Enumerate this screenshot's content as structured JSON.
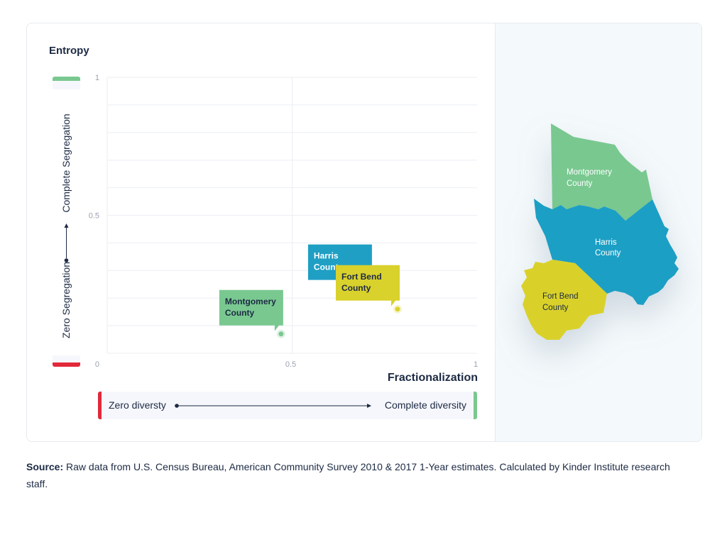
{
  "chart_data": {
    "type": "scatter",
    "title": "",
    "xlabel": "Fractionalization",
    "ylabel": "Entropy",
    "xlim": [
      0,
      1
    ],
    "ylim": [
      0,
      1
    ],
    "x_ticks": [
      "0",
      "0.5",
      "1"
    ],
    "y_ticks": [
      "0",
      "0.5",
      "1"
    ],
    "y_scale_low": "Zero Segregation",
    "y_scale_high": "Complete Segregation",
    "x_scale_low": "Zero diversty",
    "x_scale_high": "Complete diversity",
    "points": [
      {
        "label_line1": "Montgomery",
        "label_line2": "County",
        "x": 0.47,
        "y": 0.07,
        "color": "#79c890",
        "text_color": "#1c2a43"
      },
      {
        "label_line1": "Harris",
        "label_line2": "County",
        "x": 0.71,
        "y": 0.235,
        "color": "#1f9fc4",
        "text_color": "#ffffff"
      },
      {
        "label_line1": "Fort Bend",
        "label_line2": "County",
        "x": 0.785,
        "y": 0.16,
        "color": "#d9d12c",
        "text_color": "#1c2a43"
      }
    ]
  },
  "map": {
    "montgomery_label": [
      "Montgomery",
      "County"
    ],
    "harris_label": [
      "Harris",
      "County"
    ],
    "fortbend_label": [
      "Fort Bend",
      "County"
    ],
    "colors": {
      "montgomery": "#79c890",
      "harris": "#1f9fc4",
      "fortbend": "#d9d12c"
    }
  },
  "source": {
    "prefix": "Source:",
    "text": " Raw data from U.S. Census Bureau, American Community Survey 2010 & 2017 1-Year estimates. Calculated by Kinder Institute research staff."
  }
}
